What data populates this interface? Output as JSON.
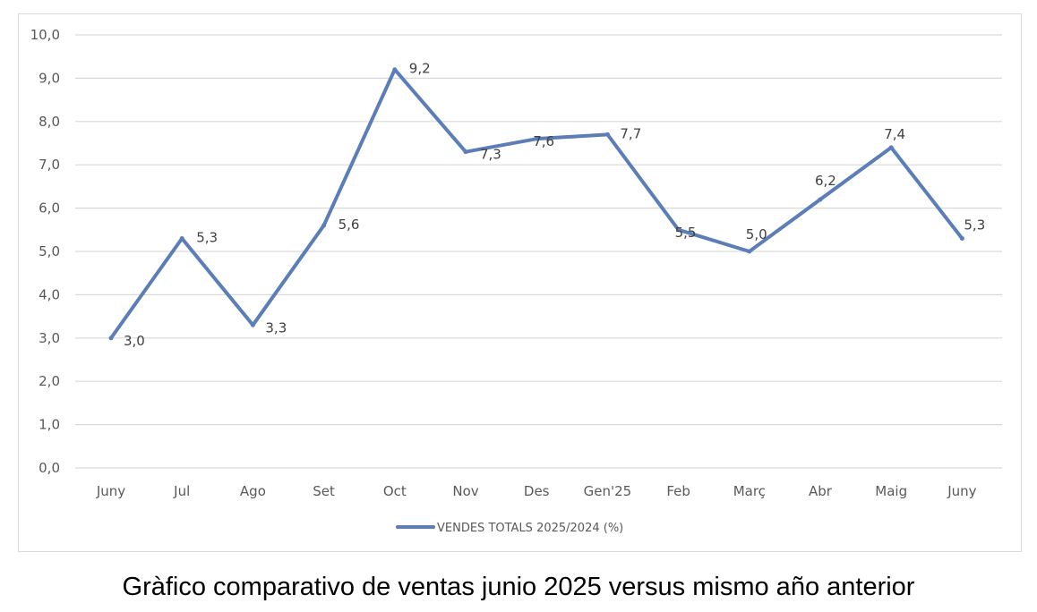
{
  "caption": "Gràfico comparativo de ventas junio 2025 versus mismo año anterior",
  "chart_data": {
    "type": "line",
    "categories": [
      "Juny",
      "Jul",
      "Ago",
      "Set",
      "Oct",
      "Nov",
      "Des",
      "Gen'25",
      "Feb",
      "Març",
      "Abr",
      "Maig",
      "Juny"
    ],
    "series": [
      {
        "name": "VENDES TOTALS 2025/2024 (%)",
        "values": [
          3.0,
          5.3,
          3.3,
          5.6,
          9.2,
          7.3,
          7.6,
          7.7,
          5.5,
          5.0,
          6.2,
          7.4,
          5.3
        ],
        "labels": [
          "3,0",
          "5,3",
          "3,3",
          "5,6",
          "9,2",
          "7,3",
          "7,6",
          "7,7",
          "5,5",
          "5,0",
          "6,2",
          "7,4",
          "5,3"
        ],
        "color": "#5b7db8"
      }
    ],
    "y_ticks": [
      "0,0",
      "1,0",
      "2,0",
      "3,0",
      "4,0",
      "5,0",
      "6,0",
      "7,0",
      "8,0",
      "9,0",
      "10,0"
    ],
    "ylim": [
      0,
      10
    ],
    "grid": true,
    "legend_position": "bottom",
    "gridline_color": "#d9d9d9"
  }
}
